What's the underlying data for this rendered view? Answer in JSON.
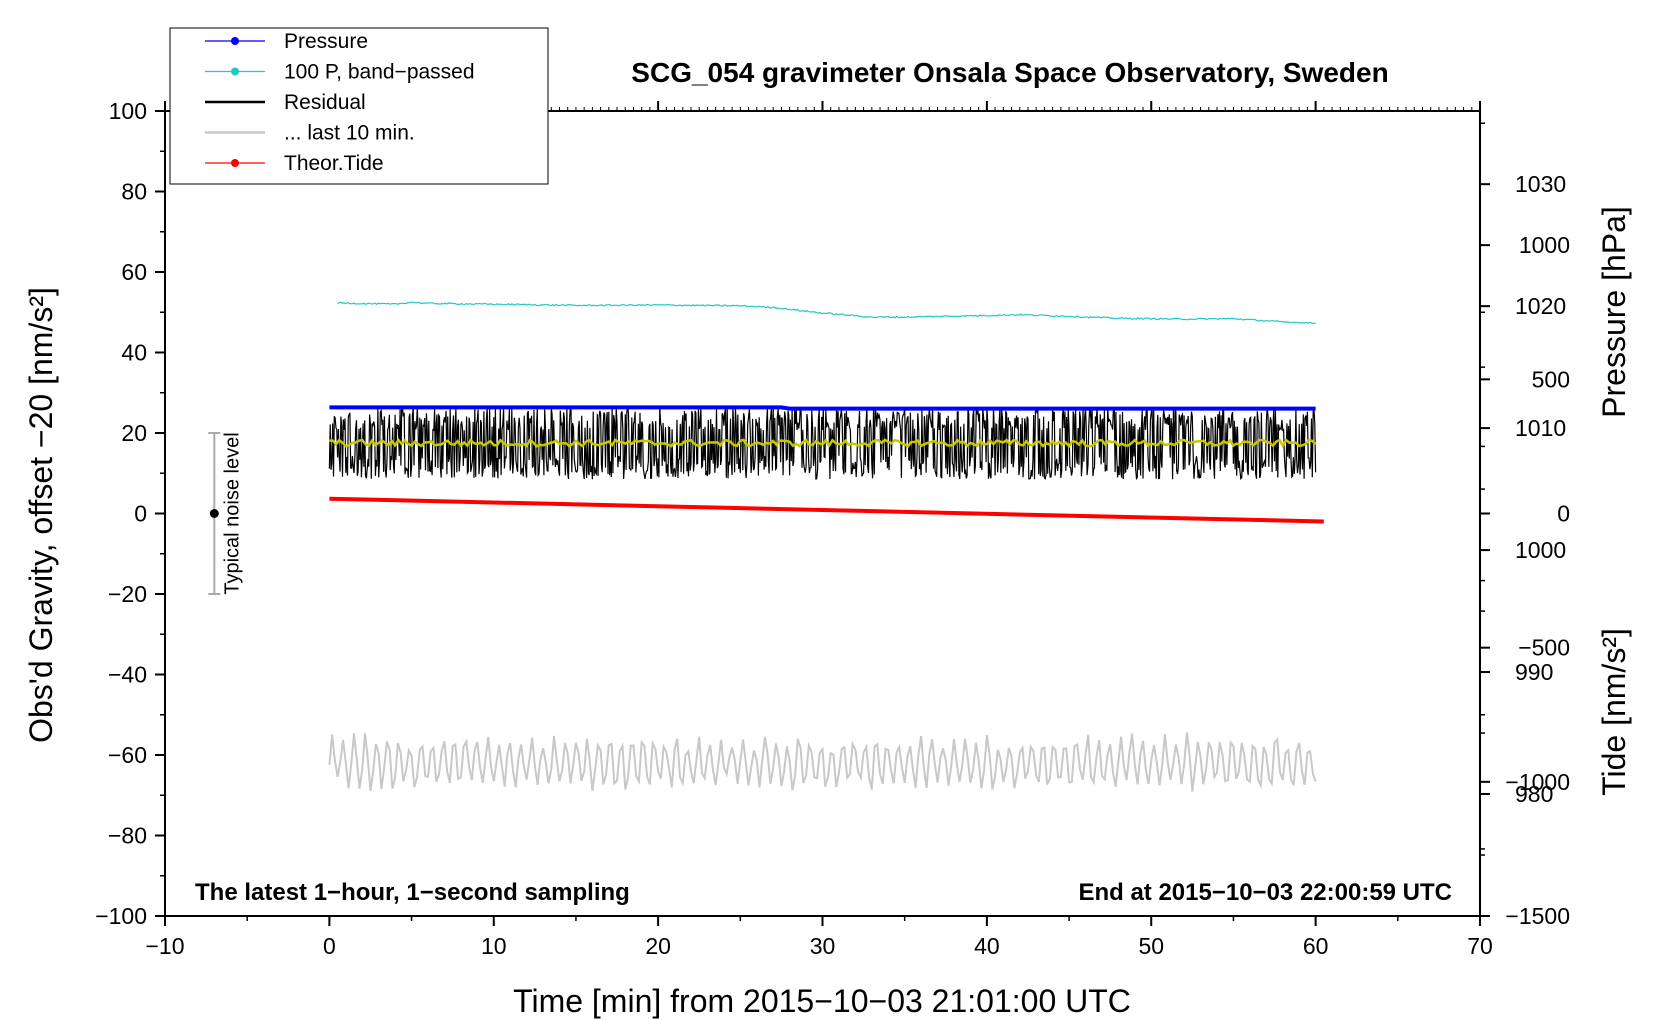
{
  "chart_data": {
    "type": "line",
    "title": "SCG_054 gravimeter Onsala Space Observatory, Sweden",
    "xlabel": "Time [min] from 2015−10−03 21:01:00 UTC",
    "ylabel_left": "Obs'd Gravity, offset −20 [nm/s²]",
    "ylabel_pressure": "Pressure [hPa]",
    "ylabel_tide": "Tide [nm/s²]",
    "xlim": [
      -10,
      70
    ],
    "ylim": [
      -100,
      100
    ],
    "pressure_lim": [
      970,
      1036
    ],
    "tide_lim": [
      -1500,
      1500
    ],
    "x_ticks": [
      "−10",
      "0",
      "10",
      "20",
      "30",
      "40",
      "50",
      "60",
      "70"
    ],
    "x_tick_values": [
      -10,
      0,
      10,
      20,
      30,
      40,
      50,
      60,
      70
    ],
    "y_ticks": [
      "100",
      "80",
      "60",
      "40",
      "20",
      "0",
      "−20",
      "−40",
      "−60",
      "−80",
      "−100"
    ],
    "y_tick_values": [
      100,
      80,
      60,
      40,
      20,
      0,
      -20,
      -40,
      -60,
      -80,
      -100
    ],
    "pressure_ticks": [
      "1030",
      "1020",
      "1010",
      "1000",
      "990",
      "980"
    ],
    "pressure_tick_values": [
      1030,
      1020,
      1010,
      1000,
      990,
      980
    ],
    "tide_ticks": [
      "1000",
      "500",
      "0",
      "−500",
      "−1000",
      "−1500"
    ],
    "tide_tick_values": [
      1000,
      500,
      0,
      -500,
      -1000,
      -1500
    ],
    "legend_position": "top-left",
    "series": [
      {
        "name": "Pressure",
        "color": "#0000ff",
        "axis": "pressure",
        "x": [
          0,
          10,
          20,
          27.5,
          28,
          40,
          50,
          60
        ],
        "values": [
          1011.7,
          1011.7,
          1011.7,
          1011.7,
          1011.6,
          1011.6,
          1011.6,
          1011.6
        ]
      },
      {
        "name": "100 P, band−passed",
        "color": "#20c8c8",
        "axis": "left",
        "x": [
          0.5,
          4,
          5,
          6,
          10,
          15,
          20,
          25,
          27,
          30,
          33,
          35,
          40,
          42,
          45,
          48,
          52,
          55,
          58,
          60
        ],
        "values": [
          52.3,
          52,
          52.5,
          52.2,
          52,
          51.7,
          51.8,
          51.6,
          51.2,
          49.8,
          48.8,
          48.8,
          49.2,
          49.4,
          49,
          48.5,
          48.3,
          48.4,
          47.6,
          47.3
        ]
      },
      {
        "name": "Residual",
        "color": "#000000",
        "axis": "left",
        "style": "noisy",
        "x": [
          0,
          60
        ],
        "values": [
          17.5,
          17.5
        ],
        "noise_amplitude": 9
      },
      {
        "name": "... last 10 min.",
        "color": "#c8c8c8",
        "axis": "left",
        "style": "oscillating",
        "x": [
          0,
          60
        ],
        "values": [
          -62,
          -62
        ],
        "oscillation_amplitude": 7
      },
      {
        "name": "Theor.Tide",
        "color": "#ff0000",
        "axis": "tide",
        "x": [
          0,
          60.5
        ],
        "values": [
          55,
          -30
        ]
      },
      {
        "name": "Residual smoothed",
        "color": "#c8c800",
        "axis": "left",
        "x": [
          0,
          60
        ],
        "values": [
          17.5,
          17.5
        ],
        "legend": false
      }
    ],
    "noise_bar": {
      "x": -7,
      "center": 0,
      "low": -20,
      "high": 20,
      "label": "Typical noise level"
    },
    "annotations": {
      "bottom_left": "The latest 1−hour, 1−second sampling",
      "bottom_right": "End at 2015−10−03 22:00:59 UTC"
    }
  }
}
